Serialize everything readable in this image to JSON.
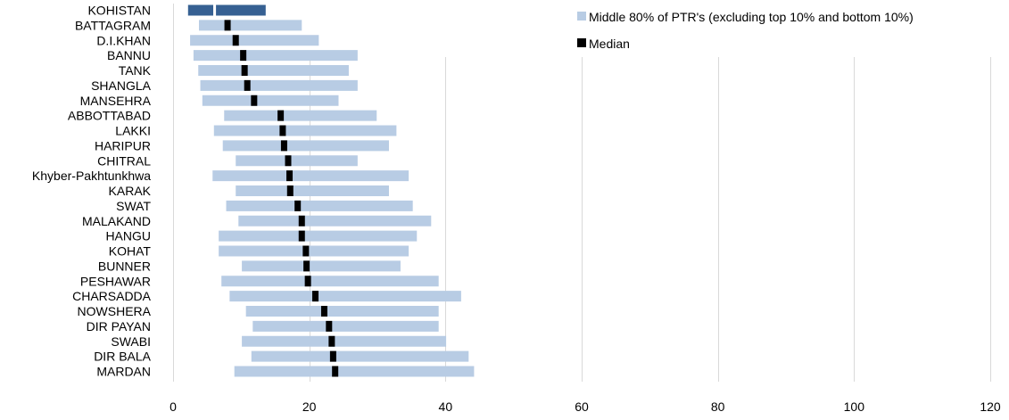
{
  "chart_data": {
    "type": "bar",
    "subtype": "floating-range-with-median",
    "categories": [
      "KOHISTAN",
      "BATTAGRAM",
      "D.I.KHAN",
      "BANNU",
      "TANK",
      "SHANGLA",
      "MANSEHRA",
      "ABBOTTABAD",
      "LAKKI",
      "HARIPUR",
      "CHITRAL",
      "Khyber-Pakhtunkhwa",
      "KARAK",
      "SWAT",
      "MALAKAND",
      "HANGU",
      "KOHAT",
      "BUNNER",
      "PESHAWAR",
      "CHARSADDA",
      "NOWSHERA",
      "DIR PAYAN",
      "SWABI",
      "DIR BALA",
      "MARDAN"
    ],
    "series": [
      {
        "name": "Middle 80% of PTR's (excluding top 10% and bottom 10%)",
        "color": "#b8cce4",
        "low": [
          2.5,
          3.8,
          2.5,
          3.0,
          3.7,
          4.0,
          4.3,
          7.5,
          6.0,
          7.3,
          9.2,
          5.8,
          9.2,
          7.8,
          9.6,
          6.7,
          6.7,
          10.1,
          7.1,
          8.3,
          10.7,
          11.7,
          10.1,
          11.5,
          9.0
        ],
        "high": [
          13.6,
          18.9,
          21.4,
          27.1,
          25.8,
          27.1,
          24.3,
          29.9,
          32.8,
          31.7,
          27.1,
          34.6,
          31.7,
          35.2,
          37.9,
          35.8,
          34.6,
          33.4,
          39.0,
          42.3,
          39.0,
          39.0,
          40.1,
          43.4,
          44.2
        ]
      },
      {
        "name": "Median",
        "color": "#000000",
        "values": [
          7.0,
          8.0,
          9.2,
          10.3,
          10.5,
          10.9,
          11.9,
          15.8,
          16.1,
          16.3,
          16.9,
          17.1,
          17.2,
          18.3,
          18.9,
          18.9,
          19.5,
          19.6,
          19.8,
          20.9,
          22.2,
          22.9,
          23.3,
          23.5,
          23.8
        ]
      }
    ],
    "kohistan_segments": {
      "color": "#366092",
      "segments": [
        [
          2.2,
          5.9
        ],
        [
          6.3,
          13.6
        ]
      ]
    },
    "xlim": [
      0,
      120
    ],
    "xticks": [
      0,
      20,
      40,
      60,
      80,
      100,
      120
    ],
    "grid": "vertical",
    "legend_position": "top-right",
    "title": "",
    "xlabel": "",
    "ylabel": ""
  }
}
